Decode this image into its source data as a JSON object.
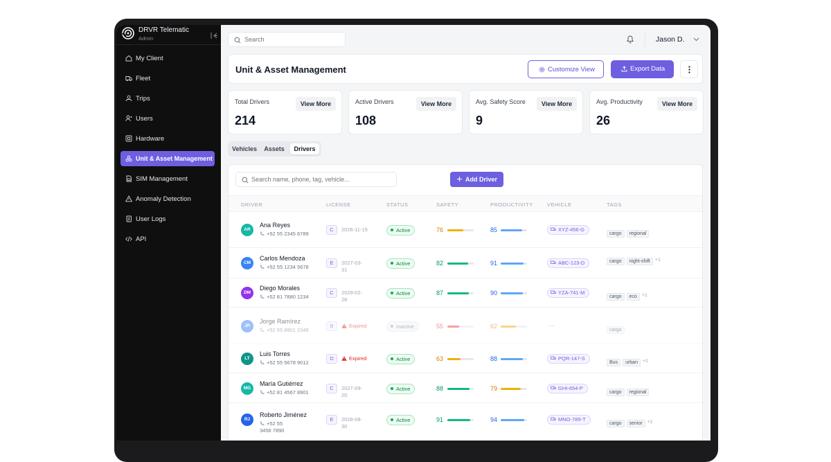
{
  "app": {
    "name": "DRVR Telematic",
    "role": "Admin"
  },
  "sidebar": {
    "items": [
      {
        "label": "My Client",
        "icon": "home-icon"
      },
      {
        "label": "Fleet",
        "icon": "truck-icon"
      },
      {
        "label": "Trips",
        "icon": "route-icon"
      },
      {
        "label": "Users",
        "icon": "user-add-icon"
      },
      {
        "label": "Hardware",
        "icon": "chip-icon"
      },
      {
        "label": "Unit & Asset Management",
        "icon": "assets-icon",
        "active": true
      },
      {
        "label": "SIM Management",
        "icon": "sim-card-icon"
      },
      {
        "label": "Anomaly Detection",
        "icon": "warning-icon"
      },
      {
        "label": "User Logs",
        "icon": "logs-icon"
      },
      {
        "label": "API",
        "icon": "code-icon"
      }
    ]
  },
  "topbar": {
    "search_placeholder": "Search",
    "user_name": "Jason D."
  },
  "header": {
    "title": "Unit & Asset Management",
    "customize_label": "Customize View",
    "export_label": "Export Data"
  },
  "stats": [
    {
      "label": "Total Drivers",
      "value": "214",
      "button": "View More"
    },
    {
      "label": "Active Drivers",
      "value": "108",
      "button": "View More"
    },
    {
      "label": "Avg. Safety Score",
      "value": "9",
      "button": "View More"
    },
    {
      "label": "Avg. Productivity",
      "value": "26",
      "button": "View More"
    }
  ],
  "tabs": [
    {
      "label": "Vehicles",
      "active": false
    },
    {
      "label": "Assets",
      "active": false
    },
    {
      "label": "Drivers",
      "active": true
    }
  ],
  "table": {
    "search_placeholder": "Search name, phone, tag, vehicle...",
    "add_label": "Add Driver",
    "columns": [
      "DRIVER",
      "LICENSE",
      "STATUS",
      "SAFETY",
      "PRODUCTIVITY",
      "VEHICLE",
      "TAGS"
    ],
    "rows": [
      {
        "initials": "AR",
        "name": "Ana Reyes",
        "phone": "+52 55 2345 6789",
        "license": "C",
        "license_date": "2026-11-15",
        "expired": false,
        "status": "Active",
        "safety": 76,
        "productivity": 85,
        "vehicle": "XYZ-456-G",
        "tags": [
          "cargo",
          "regional"
        ],
        "more": "",
        "avatar_color": "#14b8a6",
        "safety_color": "#d97706",
        "safety_bar": "#eab308",
        "prod_color": "#2563eb",
        "prod_bar": "#60a5fa"
      },
      {
        "initials": "CM",
        "name": "Carlos Mendoza",
        "phone": "+52 55 1234 5678",
        "license": "E",
        "license_date": "2027-03-31",
        "expired": false,
        "status": "Active",
        "safety": 82,
        "productivity": 91,
        "vehicle": "ABC-123-D",
        "tags": [
          "cargo",
          "night-shift"
        ],
        "more": "+1",
        "avatar_color": "#3b82f6",
        "safety_color": "#059669",
        "safety_bar": "#10b981",
        "prod_color": "#2563eb",
        "prod_bar": "#60a5fa"
      },
      {
        "initials": "DM",
        "name": "Diego Morales",
        "phone": "+52 81 7880 1234",
        "license": "C",
        "license_date": "2029-02-28",
        "expired": false,
        "status": "Active",
        "safety": 87,
        "productivity": 90,
        "vehicle": "YZA-741-M",
        "tags": [
          "cargo",
          "eco"
        ],
        "more": "+1",
        "avatar_color": "#9333ea",
        "safety_color": "#059669",
        "safety_bar": "#10b981",
        "prod_color": "#2563eb",
        "prod_bar": "#60a5fa"
      },
      {
        "initials": "JR",
        "name": "Jorge Ramírez",
        "phone": "+52 55 8901 2345",
        "license": "B",
        "license_date": "Expired",
        "expired": true,
        "status": "Inactive",
        "safety": 55,
        "productivity": 62,
        "vehicle": "—",
        "tags": [
          "cargo"
        ],
        "more": "",
        "avatar_color": "#3b82f6",
        "safety_color": "#dc2626",
        "safety_bar": "#ef4444",
        "prod_color": "#d97706",
        "prod_bar": "#eab308"
      },
      {
        "initials": "LT",
        "name": "Luis Torres",
        "phone": "+52 55 5678 9012",
        "license": "D",
        "license_date": "Expired",
        "expired": true,
        "status": "Active",
        "safety": 63,
        "productivity": 88,
        "vehicle": "PQR-147-S",
        "tags": [
          "Bus",
          "urban"
        ],
        "more": "+1",
        "avatar_color": "#0f9488",
        "safety_color": "#d97706",
        "safety_bar": "#eab308",
        "prod_color": "#2563eb",
        "prod_bar": "#60a5fa"
      },
      {
        "initials": "MG",
        "name": "María Gutiérrez",
        "phone": "+52 81 4567 8901",
        "license": "C",
        "license_date": "2027-09-20",
        "expired": false,
        "status": "Active",
        "safety": 88,
        "productivity": 79,
        "vehicle": "GHI-654-P",
        "tags": [
          "cargo",
          "regional"
        ],
        "more": "",
        "avatar_color": "#14b8a6",
        "safety_color": "#059669",
        "safety_bar": "#10b981",
        "prod_color": "#d97706",
        "prod_bar": "#eab308"
      },
      {
        "initials": "RJ",
        "name": "Roberto Jiménez",
        "phone": "+52 55 3456 7890",
        "license": "E",
        "license_date": "2028-08-30",
        "expired": false,
        "status": "Active",
        "safety": 91,
        "productivity": 94,
        "vehicle": "MNO-789-T",
        "tags": [
          "cargo",
          "senior"
        ],
        "more": "+1",
        "avatar_color": "#2563eb",
        "safety_color": "#059669",
        "safety_bar": "#10b981",
        "prod_color": "#2563eb",
        "prod_bar": "#60a5fa"
      }
    ]
  }
}
